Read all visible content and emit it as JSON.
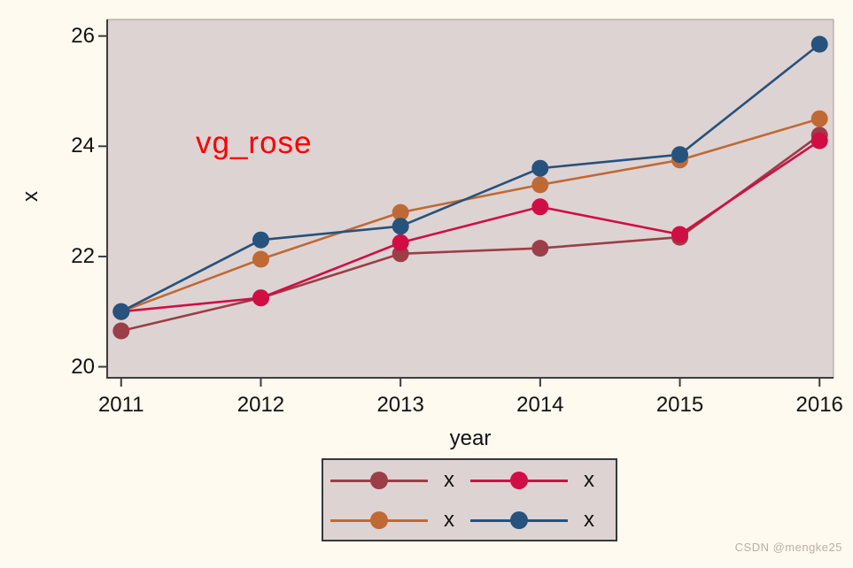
{
  "annotation": {
    "text": "vg_rose",
    "color": "#fb0000"
  },
  "watermark": {
    "text": "CSDN @mengke25",
    "color": "#b9b0ab"
  },
  "colors": {
    "background": "#fffaf0",
    "plot_background": "#ded3d3",
    "axis": "#3d3d3d",
    "plot_outline": "#a89a9a",
    "tick_text": "#121212",
    "legend_border": "#383838"
  },
  "chart_data": {
    "type": "line",
    "title": "",
    "xlabel": "year",
    "ylabel": "x",
    "x": [
      2011,
      2012,
      2013,
      2014,
      2015,
      2016
    ],
    "x_tick_labels": [
      "2011",
      "2012",
      "2013",
      "2014",
      "2015",
      "2016"
    ],
    "y_ticks": [
      20,
      22,
      24,
      26
    ],
    "y_tick_labels": [
      "20",
      "22",
      "24",
      "26"
    ],
    "xlim": [
      2010.9,
      2016.1
    ],
    "ylim": [
      19.8,
      26.3
    ],
    "grid": false,
    "legend_position": "bottom",
    "marker": "circle",
    "series": [
      {
        "name": "x",
        "color": "#9b3e47",
        "values": [
          20.65,
          21.25,
          22.05,
          22.15,
          22.35,
          24.2
        ]
      },
      {
        "name": "x",
        "color": "#d00e45",
        "values": [
          21.0,
          21.25,
          22.25,
          22.9,
          22.4,
          24.1
        ]
      },
      {
        "name": "x",
        "color": "#bf6a34",
        "values": [
          21.0,
          21.95,
          22.8,
          23.3,
          23.75,
          24.5
        ]
      },
      {
        "name": "x",
        "color": "#26527d",
        "values": [
          21.0,
          22.3,
          22.55,
          23.6,
          23.85,
          25.85
        ]
      }
    ]
  }
}
